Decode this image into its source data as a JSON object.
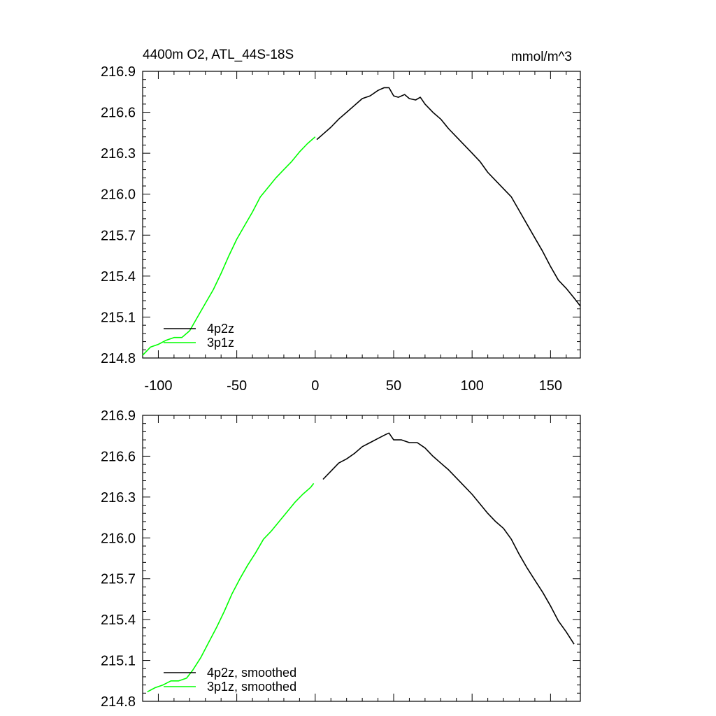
{
  "chart_data": [
    {
      "type": "line",
      "title": "4400m O2, ATL_44S-18S",
      "units": "mmol/m^3",
      "xlim": [
        -110,
        169
      ],
      "ylim": [
        214.8,
        216.9
      ],
      "x_ticks": [
        -100,
        -50,
        0,
        50,
        100,
        150
      ],
      "x_tick_labels": [
        "-100",
        "-50",
        "0",
        "50",
        "100",
        "150"
      ],
      "y_ticks": [
        214.8,
        215.1,
        215.4,
        215.7,
        216.0,
        216.3,
        216.6,
        216.9
      ],
      "y_tick_labels": [
        "214.8",
        "215.1",
        "215.4",
        "215.7",
        "216.0",
        "216.3",
        "216.6",
        "216.9"
      ],
      "legend_position": "bottom-left",
      "series": [
        {
          "name": "4p2z",
          "color": "#000000",
          "x": [
            1,
            5,
            10,
            15,
            20,
            25,
            30,
            35,
            40,
            44,
            47,
            50,
            53,
            57,
            60,
            64,
            67,
            70,
            75,
            80,
            85,
            90,
            95,
            100,
            105,
            110,
            115,
            120,
            125,
            130,
            135,
            140,
            145,
            150,
            155,
            160,
            165,
            169
          ],
          "y": [
            216.4,
            216.44,
            216.49,
            216.55,
            216.6,
            216.65,
            216.7,
            216.72,
            216.76,
            216.78,
            216.78,
            216.72,
            216.71,
            216.73,
            216.7,
            216.69,
            216.71,
            216.66,
            216.6,
            216.55,
            216.48,
            216.42,
            216.36,
            216.3,
            216.24,
            216.16,
            216.1,
            216.04,
            215.98,
            215.88,
            215.78,
            215.68,
            215.58,
            215.47,
            215.37,
            215.31,
            215.24,
            215.18
          ]
        },
        {
          "name": "3p1z",
          "color": "#00ff00",
          "x": [
            -110,
            -105,
            -100,
            -95,
            -90,
            -85,
            -80,
            -75,
            -70,
            -65,
            -60,
            -55,
            -50,
            -45,
            -40,
            -35,
            -30,
            -25,
            -20,
            -15,
            -10,
            -5,
            0
          ],
          "y": [
            214.82,
            214.88,
            214.9,
            214.93,
            214.95,
            214.95,
            215.0,
            215.1,
            215.2,
            215.3,
            215.42,
            215.55,
            215.67,
            215.77,
            215.87,
            215.98,
            216.05,
            216.12,
            216.18,
            216.24,
            216.31,
            216.37,
            216.42
          ]
        }
      ]
    },
    {
      "type": "line",
      "xlim": [
        -110,
        169
      ],
      "ylim": [
        214.8,
        216.9
      ],
      "y_ticks": [
        214.8,
        215.1,
        215.4,
        215.7,
        216.0,
        216.3,
        216.6,
        216.9
      ],
      "y_tick_labels": [
        "214.8",
        "215.1",
        "215.4",
        "215.7",
        "216.0",
        "216.3",
        "216.6",
        "216.9"
      ],
      "legend_position": "bottom-left",
      "series": [
        {
          "name": "4p2z, smoothed",
          "color": "#000000",
          "x": [
            5,
            10,
            15,
            20,
            25,
            30,
            35,
            40,
            45,
            47,
            50,
            55,
            60,
            65,
            70,
            75,
            80,
            85,
            90,
            95,
            100,
            105,
            110,
            115,
            120,
            125,
            130,
            135,
            140,
            145,
            150,
            155,
            160,
            165
          ],
          "y": [
            216.43,
            216.49,
            216.55,
            216.58,
            216.62,
            216.67,
            216.7,
            216.73,
            216.76,
            216.77,
            216.72,
            216.72,
            216.7,
            216.7,
            216.66,
            216.6,
            216.55,
            216.5,
            216.44,
            216.38,
            216.32,
            216.25,
            216.18,
            216.12,
            216.07,
            215.99,
            215.88,
            215.78,
            215.69,
            215.6,
            215.5,
            215.39,
            215.31,
            215.22
          ]
        },
        {
          "name": "3p1z, smoothed",
          "color": "#00ff00",
          "x": [
            -107,
            -102,
            -97,
            -92,
            -87,
            -82,
            -78,
            -73,
            -68,
            -63,
            -58,
            -53,
            -48,
            -43,
            -38,
            -33,
            -28,
            -23,
            -18,
            -13,
            -8,
            -3,
            -1
          ],
          "y": [
            214.87,
            214.9,
            214.92,
            214.95,
            214.95,
            214.97,
            215.03,
            215.12,
            215.23,
            215.34,
            215.46,
            215.59,
            215.7,
            215.8,
            215.89,
            215.99,
            216.05,
            216.12,
            216.19,
            216.26,
            216.32,
            216.37,
            216.4
          ]
        }
      ]
    }
  ]
}
